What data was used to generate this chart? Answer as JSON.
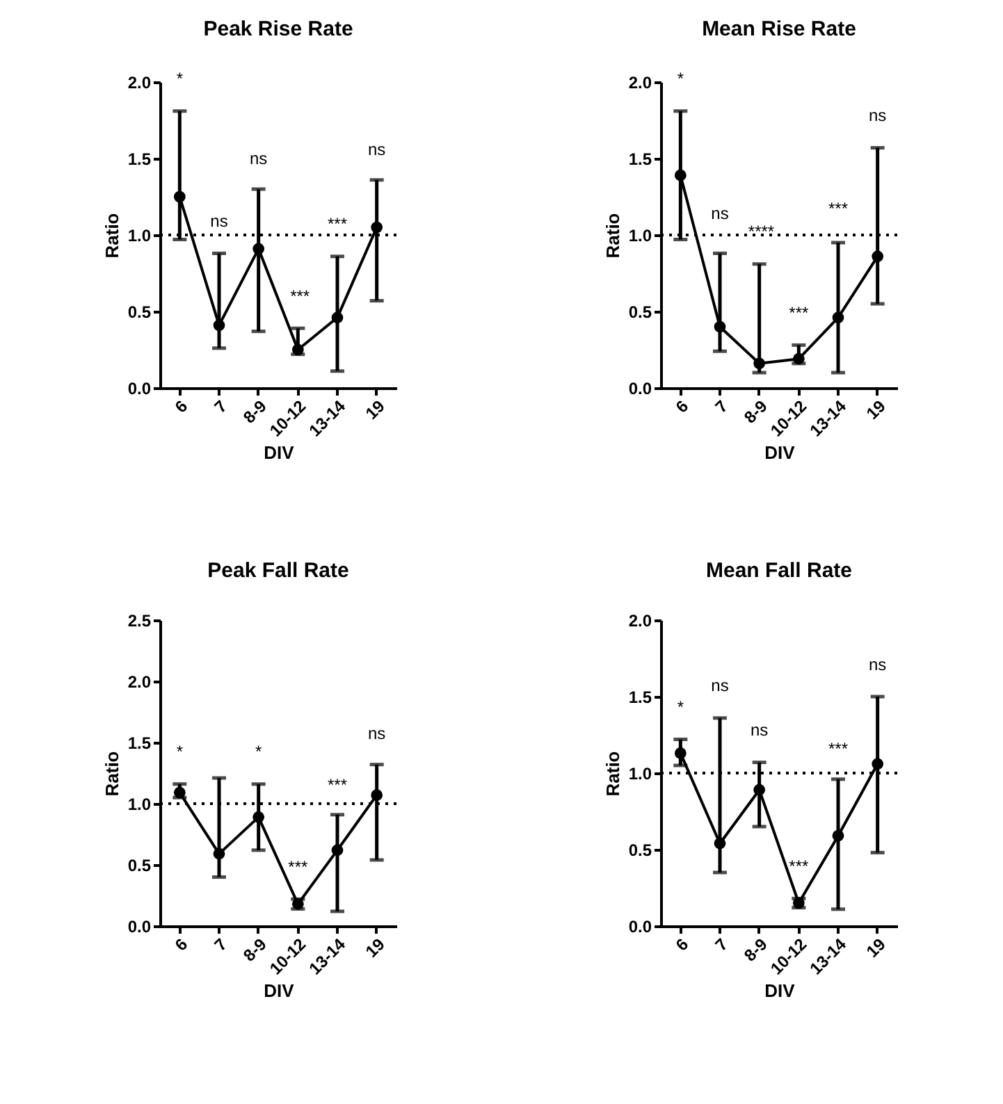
{
  "chart_data": [
    {
      "type": "line",
      "title": "Peak Rise Rate",
      "xlabel": "DIV",
      "ylabel": "Ratio",
      "categories": [
        "6",
        "7",
        "8-9",
        "10-12",
        "13-14",
        "19"
      ],
      "marker": "circle",
      "line_style": "solid",
      "grid": false,
      "series": [
        {
          "color": "#000000",
          "values": [
            1.25,
            0.41,
            0.91,
            0.25,
            0.46,
            1.05
          ],
          "errors": [
            [
              0.97,
              1.81
            ],
            [
              0.26,
              0.88
            ],
            [
              0.37,
              1.3
            ],
            [
              0.22,
              0.39
            ],
            [
              0.11,
              0.86
            ],
            [
              0.57,
              1.36
            ]
          ]
        }
      ],
      "ylim": [
        0,
        2
      ],
      "yticks": [
        {
          "value": 0,
          "label": "0.0"
        },
        {
          "value": 0.5,
          "label": "0.5"
        },
        {
          "value": 1,
          "label": "1.0"
        },
        {
          "value": 1.5,
          "label": "1.5"
        },
        {
          "value": 2,
          "label": "2.0"
        }
      ],
      "ref_lines": [
        {
          "axis": "y",
          "value": 1,
          "line_style": "dotted"
        }
      ],
      "annotations": [
        "*",
        "ns",
        "ns",
        "***",
        "***",
        "ns"
      ]
    },
    {
      "type": "line",
      "title": "Mean Rise Rate",
      "xlabel": "DIV",
      "ylabel": "Ratio",
      "categories": [
        "6",
        "7",
        "8-9",
        "10-12",
        "13-14",
        "19"
      ],
      "marker": "circle",
      "line_style": "solid",
      "grid": false,
      "series": [
        {
          "color": "#000000",
          "values": [
            1.39,
            0.4,
            0.16,
            0.19,
            0.46,
            0.86
          ],
          "errors": [
            [
              0.97,
              1.81
            ],
            [
              0.24,
              0.88
            ],
            [
              0.1,
              0.81
            ],
            [
              0.16,
              0.28
            ],
            [
              0.1,
              0.95
            ],
            [
              0.55,
              1.57
            ]
          ]
        }
      ],
      "ylim": [
        0,
        2
      ],
      "yticks": [
        {
          "value": 0,
          "label": "0.0"
        },
        {
          "value": 0.5,
          "label": "0.5"
        },
        {
          "value": 1,
          "label": "1.0"
        },
        {
          "value": 1.5,
          "label": "1.5"
        },
        {
          "value": 2,
          "label": "2.0"
        }
      ],
      "ref_lines": [
        {
          "axis": "y",
          "value": 1,
          "line_style": "dotted"
        }
      ],
      "annotations": [
        "*",
        "ns",
        "****",
        "***",
        "***",
        "ns"
      ]
    },
    {
      "type": "line",
      "title": "Peak Fall Rate",
      "xlabel": "DIV",
      "ylabel": "Ratio",
      "categories": [
        "6",
        "7",
        "8-9",
        "10-12",
        "13-14",
        "19"
      ],
      "marker": "circle",
      "line_style": "solid",
      "grid": false,
      "series": [
        {
          "color": "#000000",
          "values": [
            1.09,
            0.59,
            0.89,
            0.18,
            0.62,
            1.07
          ],
          "errors": [
            [
              1.05,
              1.16
            ],
            [
              0.4,
              1.21
            ],
            [
              0.62,
              1.16
            ],
            [
              0.14,
              0.22
            ],
            [
              0.12,
              0.91
            ],
            [
              0.54,
              1.32
            ]
          ]
        }
      ],
      "ylim": [
        0,
        2.5
      ],
      "yticks": [
        {
          "value": 0,
          "label": "0.0"
        },
        {
          "value": 0.5,
          "label": "0.5"
        },
        {
          "value": 1,
          "label": "1.0"
        },
        {
          "value": 1.5,
          "label": "1.5"
        },
        {
          "value": 2,
          "label": "2.0"
        },
        {
          "value": 2.5,
          "label": "2.5"
        }
      ],
      "ref_lines": [
        {
          "axis": "y",
          "value": 1,
          "line_style": "dotted"
        }
      ],
      "annotations": [
        "*",
        "*",
        "***",
        "***",
        "ns"
      ]
    },
    {
      "type": "line",
      "title": "Mean Fall Rate",
      "xlabel": "DIV",
      "ylabel": "Ratio",
      "categories": [
        "6",
        "7",
        "8-9",
        "10-12",
        "13-14",
        "19"
      ],
      "marker": "circle",
      "line_style": "solid",
      "grid": false,
      "series": [
        {
          "color": "#000000",
          "values": [
            1.13,
            0.54,
            0.89,
            0.15,
            0.59,
            1.06
          ],
          "errors": [
            [
              1.05,
              1.22
            ],
            [
              0.35,
              1.36
            ],
            [
              0.65,
              1.07
            ],
            [
              0.12,
              0.18
            ],
            [
              0.11,
              0.96
            ],
            [
              0.48,
              1.5
            ]
          ]
        }
      ],
      "ylim": [
        0,
        2
      ],
      "yticks": [
        {
          "value": 0,
          "label": "0.0"
        },
        {
          "value": 0.5,
          "label": "0.5"
        },
        {
          "value": 1,
          "label": "1.0"
        },
        {
          "value": 1.5,
          "label": "1.5"
        },
        {
          "value": 2,
          "label": "2.0"
        }
      ],
      "ref_lines": [
        {
          "axis": "y",
          "value": 1,
          "line_style": "dotted"
        }
      ],
      "annotations": [
        "*",
        "ns",
        "ns",
        "***",
        "***",
        "ns"
      ]
    }
  ]
}
